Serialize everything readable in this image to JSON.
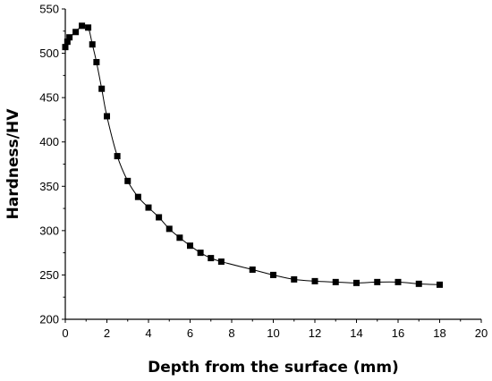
{
  "chart_data": {
    "type": "line",
    "title": "",
    "xlabel": "Depth from the surface (mm)",
    "ylabel": "Hardness/HV",
    "xlim": [
      0,
      20
    ],
    "ylim": [
      200,
      550
    ],
    "xticks": [
      "0",
      "2",
      "4",
      "6",
      "8",
      "10",
      "12",
      "14",
      "16",
      "18",
      "20"
    ],
    "yticks": [
      "200",
      "250",
      "300",
      "350",
      "400",
      "450",
      "500",
      "550"
    ],
    "grid": false,
    "legend": "none",
    "marker": "square",
    "series_color": "#000000",
    "series": [
      {
        "x": [
          0,
          0.1,
          0.2,
          0.5,
          0.8,
          1.1,
          1.3,
          1.5,
          1.75,
          2.0,
          2.5,
          3.0,
          3.5,
          4.0,
          4.5,
          5.0,
          5.5,
          6.0,
          6.5,
          7.0,
          7.5,
          9.0,
          10.0,
          11.0,
          12.0,
          13.0,
          14.0,
          15.0,
          16.0,
          17.0,
          18.0
        ],
        "y": [
          507,
          513,
          518,
          524,
          531,
          529,
          510,
          490,
          460,
          429,
          384,
          356,
          338,
          326,
          315,
          302,
          292,
          283,
          275,
          269,
          265,
          256,
          250,
          245,
          243,
          242,
          241,
          242,
          242,
          240,
          239
        ]
      }
    ]
  }
}
